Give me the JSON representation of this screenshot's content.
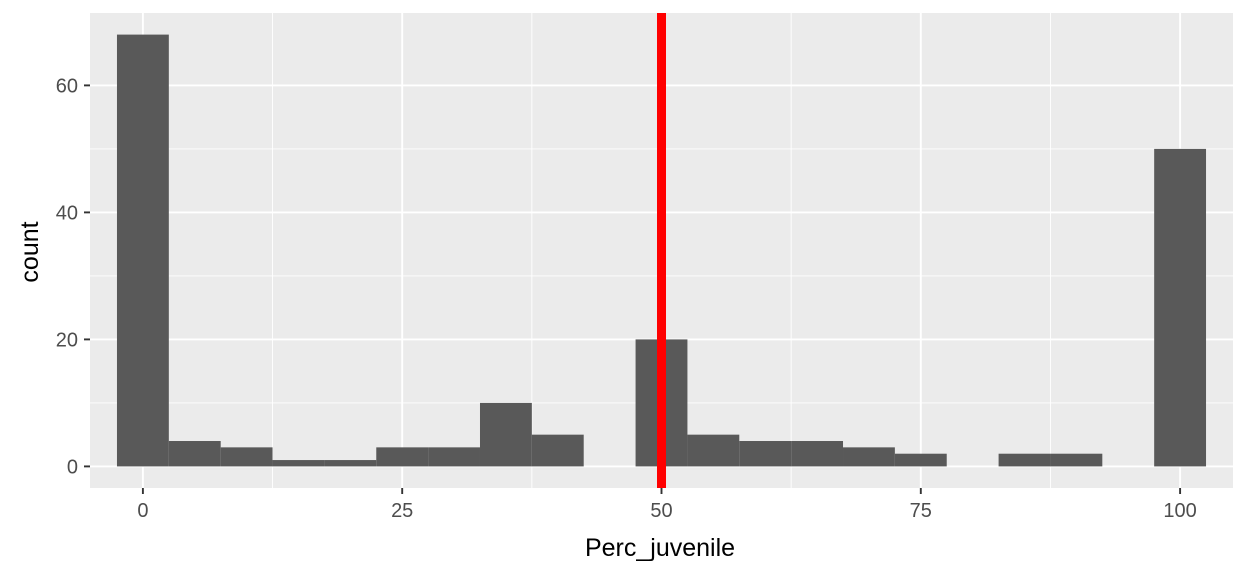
{
  "chart_data": {
    "type": "bar",
    "xlabel": "Perc_juvenile",
    "ylabel": "count",
    "bin_width": 5,
    "bins": [
      {
        "center": 0,
        "count": 68
      },
      {
        "center": 5,
        "count": 4
      },
      {
        "center": 10,
        "count": 3
      },
      {
        "center": 15,
        "count": 1
      },
      {
        "center": 20,
        "count": 1
      },
      {
        "center": 25,
        "count": 3
      },
      {
        "center": 30,
        "count": 3
      },
      {
        "center": 35,
        "count": 10
      },
      {
        "center": 40,
        "count": 5
      },
      {
        "center": 45,
        "count": 0
      },
      {
        "center": 50,
        "count": 20
      },
      {
        "center": 55,
        "count": 5
      },
      {
        "center": 60,
        "count": 4
      },
      {
        "center": 65,
        "count": 4
      },
      {
        "center": 70,
        "count": 3
      },
      {
        "center": 75,
        "count": 2
      },
      {
        "center": 80,
        "count": 0
      },
      {
        "center": 85,
        "count": 2
      },
      {
        "center": 90,
        "count": 2
      },
      {
        "center": 95,
        "count": 0
      },
      {
        "center": 100,
        "count": 50
      }
    ],
    "xlim": [
      -5.1,
      105.1
    ],
    "ylim": [
      -3.4,
      71.4
    ],
    "x_ticks": [
      0,
      25,
      50,
      75,
      100
    ],
    "x_tick_labels": [
      "0",
      "25",
      "50",
      "75",
      "100"
    ],
    "y_ticks": [
      0,
      20,
      40,
      60
    ],
    "y_tick_labels": [
      "0",
      "20",
      "40",
      "60"
    ],
    "vline": {
      "x": 50,
      "color": "#ff0000"
    },
    "colors": {
      "bar": "#595959",
      "panel": "#ebebeb",
      "grid": "#ffffff",
      "ticks": "#333333",
      "tick_text": "#4d4d4d"
    },
    "grid": true
  }
}
